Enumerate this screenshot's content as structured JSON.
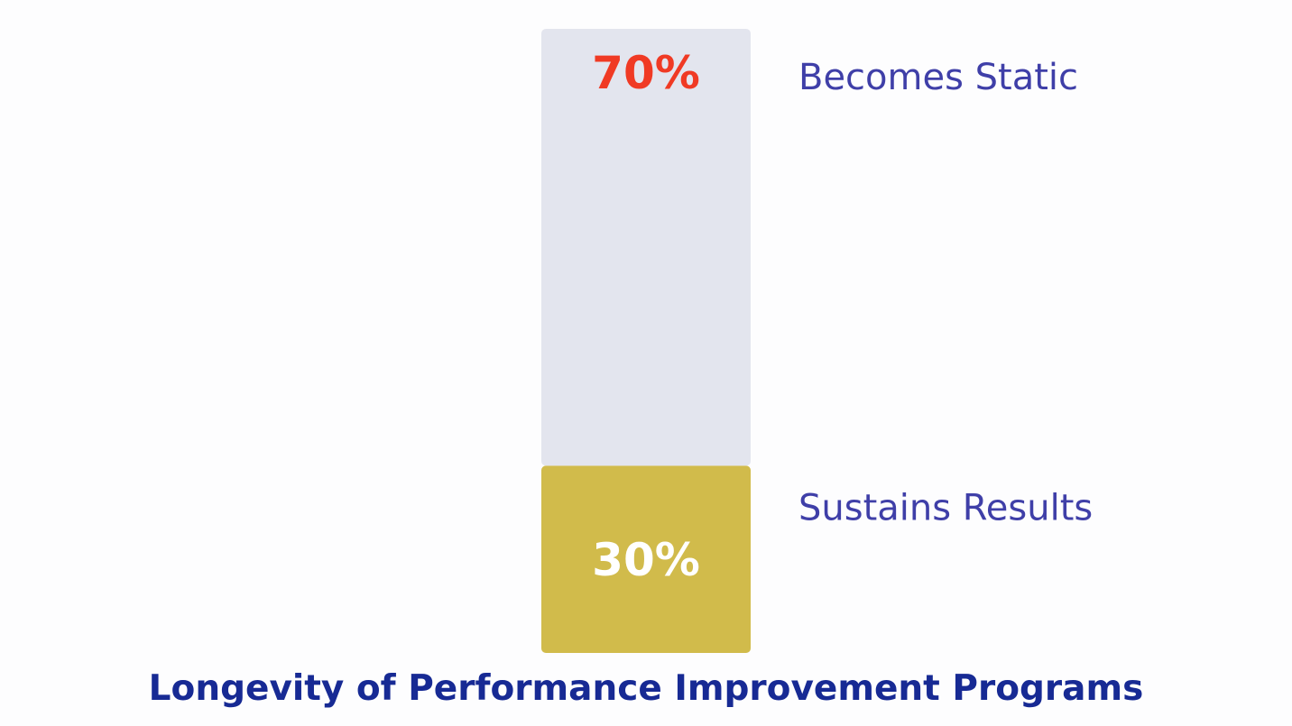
{
  "chart_data": {
    "type": "bar",
    "title": "Longevity of Performance Improvement Programs",
    "xlabel": "",
    "ylabel": "",
    "stacked": true,
    "unit": "%",
    "ylim": [
      0,
      100
    ],
    "grid": false,
    "legend": "right",
    "categories": [
      ""
    ],
    "series": [
      {
        "name": "Sustains Results",
        "values": [
          30
        ],
        "value_label": "30%",
        "color": "#d1bb4b",
        "label_color": "#ffffff"
      },
      {
        "name": "Becomes Static",
        "values": [
          70
        ],
        "value_label": "70%",
        "color": "#e3e5ee",
        "label_color": "#f03a24"
      }
    ]
  },
  "colors": {
    "background": "#fdfdfe",
    "series_label_text": "#3f3fa8",
    "title_text": "#172a94"
  }
}
